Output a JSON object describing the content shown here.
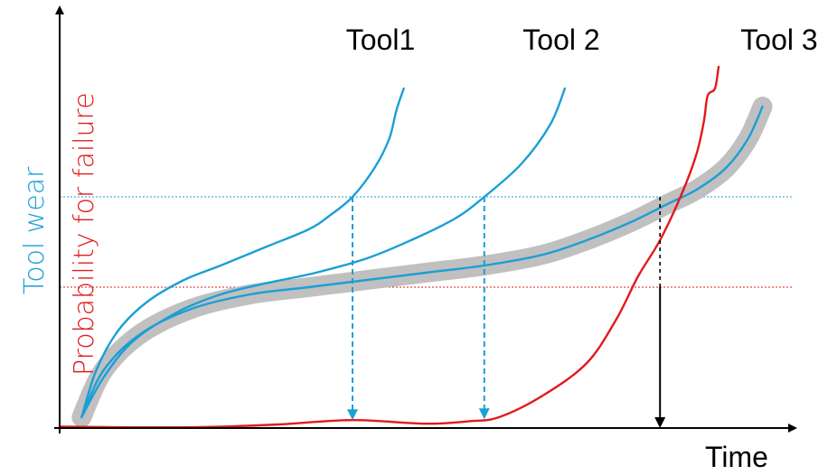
{
  "chart_data": {
    "type": "line",
    "title": "",
    "xlabel": "Time",
    "ylabel_primary": "Tool wear",
    "ylabel_secondary": "Probability for failure",
    "xlim": [
      0,
      100
    ],
    "ylim": [
      0,
      100
    ],
    "grid": false,
    "legend": "none",
    "colors": {
      "wear": "#1a9fd6",
      "failure": "#e3191c",
      "band": "#c0c0c0",
      "axis": "#000000",
      "wear_threshold": "#1a9fd6",
      "failure_threshold": "#e3191c"
    },
    "thresholds": {
      "wear": 64,
      "failure": 39
    },
    "series": [
      {
        "name": "Tool1",
        "role": "wear",
        "x": [
          3,
          5,
          8,
          12,
          17,
          22,
          28,
          34,
          37,
          40,
          43,
          45,
          46,
          47
        ],
        "y": [
          3,
          16,
          27,
          35,
          41,
          45,
          50,
          55,
          59,
          64,
          72,
          80,
          88,
          94
        ]
      },
      {
        "name": "Tool 2",
        "role": "wear",
        "x": [
          3,
          6,
          10,
          16,
          22,
          28,
          35,
          42,
          48,
          54,
          58,
          63,
          67,
          69
        ],
        "y": [
          3,
          14,
          24,
          32,
          37,
          40,
          43,
          47,
          52,
          58,
          64,
          73,
          84,
          94
        ]
      },
      {
        "name": "Tool 3",
        "role": "wear",
        "x": [
          3,
          6,
          11,
          18,
          26,
          34,
          42,
          50,
          58,
          66,
          72,
          78,
          83,
          87,
          91,
          94,
          96
        ],
        "y": [
          3,
          16,
          26,
          33,
          37,
          39,
          41,
          43,
          45,
          48,
          52,
          57,
          62,
          66,
          72,
          80,
          89
        ]
      },
      {
        "name": "",
        "role": "failure",
        "x": [
          0,
          10,
          20,
          30,
          40,
          50,
          56,
          60,
          66,
          72,
          76,
          79,
          82,
          85,
          87,
          88,
          88.5,
          89.5,
          90
        ],
        "y": [
          0.4,
          0.2,
          0.3,
          1.0,
          2.2,
          1.2,
          1.9,
          3.0,
          9.0,
          18.0,
          30.0,
          42.0,
          52.0,
          65.0,
          76.0,
          85.0,
          92.0,
          94.0,
          100.0
        ]
      }
    ],
    "markers": [
      {
        "x": 40,
        "y_from": 64,
        "color": "#1a9fd6",
        "style": "dashed"
      },
      {
        "x": 58,
        "y_from": 64,
        "color": "#1a9fd6",
        "style": "dashed"
      },
      {
        "x": 82,
        "y_from": 64,
        "color": "#000000",
        "style": "dashed-then-solid"
      }
    ]
  }
}
